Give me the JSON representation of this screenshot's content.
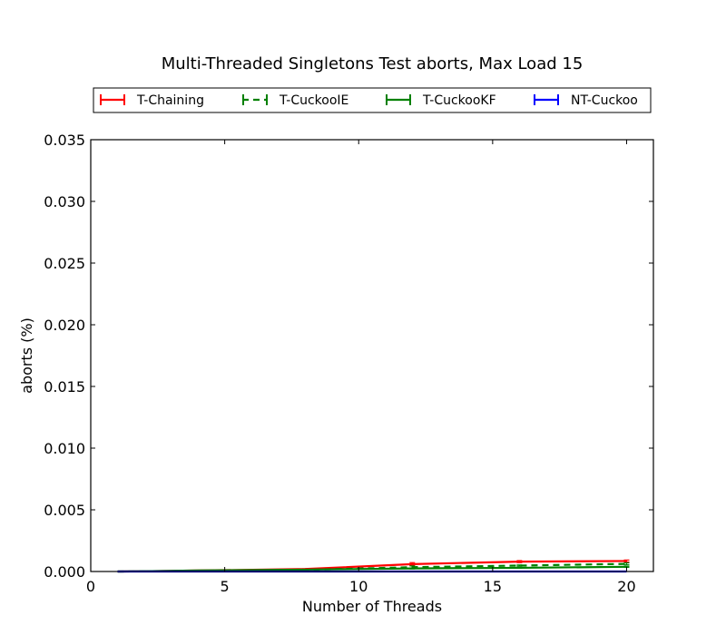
{
  "chart_data": {
    "type": "line",
    "title": "Multi-Threaded Singletons Test aborts, Max Load 15",
    "xlabel": "Number of Threads",
    "ylabel": "aborts (%)",
    "xlim": [
      0,
      21
    ],
    "ylim": [
      0,
      0.035
    ],
    "xticks": [
      0,
      5,
      10,
      15,
      20
    ],
    "xtick_labels": [
      "0",
      "5",
      "10",
      "15",
      "20"
    ],
    "yticks": [
      0,
      0.005,
      0.01,
      0.015,
      0.02,
      0.025,
      0.03,
      0.035
    ],
    "ytick_labels": [
      "0.000",
      "0.005",
      "0.010",
      "0.015",
      "0.020",
      "0.025",
      "0.030",
      "0.035"
    ],
    "grid": false,
    "legend_position": "top",
    "x": [
      1,
      2,
      4,
      8,
      12,
      16,
      20
    ],
    "series": [
      {
        "name": "T-Chaining",
        "color": "#ff0000",
        "dash": "solid",
        "values": [
          0.0,
          2e-05,
          8e-05,
          0.0002,
          0.0006,
          0.0008,
          0.00085
        ],
        "errors": [
          0.0,
          0.0,
          0.0,
          2e-05,
          0.00012,
          8e-05,
          8e-05
        ]
      },
      {
        "name": "T-CuckooIE",
        "color": "#008000",
        "dash": "dashed",
        "values": [
          0.0,
          1e-05,
          5e-05,
          0.00013,
          0.00035,
          0.00048,
          0.00062
        ],
        "errors": [
          0.0,
          0.0,
          0.0,
          1e-05,
          0.0001,
          5e-05,
          8e-05
        ]
      },
      {
        "name": "T-CuckooKF",
        "color": "#008000",
        "dash": "solid",
        "values": [
          0.0,
          2e-05,
          8e-05,
          0.00015,
          0.00025,
          0.0003,
          0.00038
        ],
        "errors": [
          0.0,
          0.0,
          0.0,
          1e-05,
          4e-05,
          3e-05,
          4e-05
        ]
      },
      {
        "name": "NT-Cuckoo",
        "color": "#0000ff",
        "dash": "solid",
        "values": [
          0.0,
          0.0,
          0.0,
          0.0,
          0.0,
          0.0,
          0.0
        ],
        "errors": [
          0.0,
          0.0,
          0.0,
          0.0,
          0.0,
          0.0,
          0.0
        ]
      }
    ]
  }
}
